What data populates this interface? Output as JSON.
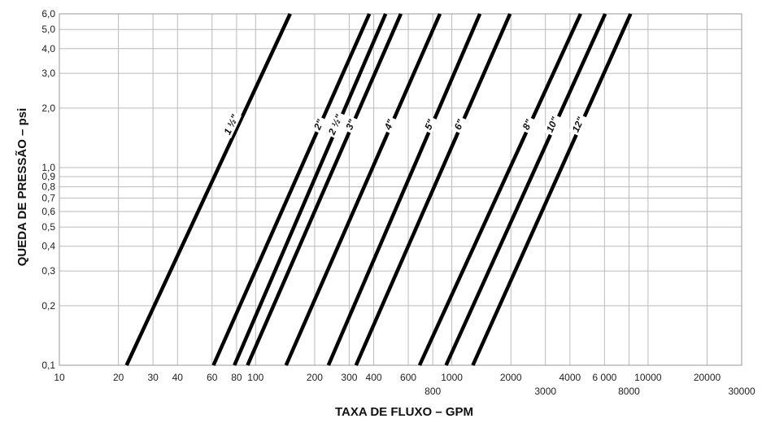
{
  "chart_data": {
    "type": "line",
    "xscale": "log",
    "yscale": "log",
    "xlabel": "TAXA DE FLUXO – GPM",
    "ylabel": "QUEDA DE PRESSÃO – psi",
    "xlim": [
      10,
      30000
    ],
    "ylim": [
      0.1,
      6.0
    ],
    "grid": true,
    "x_ticks": [
      {
        "value": 10,
        "label": "10",
        "row": 0
      },
      {
        "value": 20,
        "label": "20",
        "row": 0
      },
      {
        "value": 30,
        "label": "30",
        "row": 0
      },
      {
        "value": 40,
        "label": "40",
        "row": 0
      },
      {
        "value": 60,
        "label": "60",
        "row": 0
      },
      {
        "value": 80,
        "label": "80",
        "row": 0
      },
      {
        "value": 100,
        "label": "100",
        "row": 0
      },
      {
        "value": 200,
        "label": "200",
        "row": 0
      },
      {
        "value": 300,
        "label": "300",
        "row": 0
      },
      {
        "value": 400,
        "label": "400",
        "row": 0
      },
      {
        "value": 600,
        "label": "600",
        "row": 0
      },
      {
        "value": 800,
        "label": "800",
        "row": 1
      },
      {
        "value": 1000,
        "label": "1000",
        "row": 0
      },
      {
        "value": 2000,
        "label": "2000",
        "row": 0
      },
      {
        "value": 3000,
        "label": "3000",
        "row": 1
      },
      {
        "value": 4000,
        "label": "4000",
        "row": 0
      },
      {
        "value": 6000,
        "label": "6 000",
        "row": 0
      },
      {
        "value": 8000,
        "label": "8000",
        "row": 1
      },
      {
        "value": 10000,
        "label": "10000",
        "row": 0
      },
      {
        "value": 20000,
        "label": "20000",
        "row": 0
      },
      {
        "value": 30000,
        "label": "30000",
        "row": 1
      }
    ],
    "y_ticks": [
      {
        "value": 0.1,
        "label": "0,1"
      },
      {
        "value": 0.2,
        "label": "0,2"
      },
      {
        "value": 0.3,
        "label": "0,3"
      },
      {
        "value": 0.4,
        "label": "0,4"
      },
      {
        "value": 0.5,
        "label": "0,5"
      },
      {
        "value": 0.6,
        "label": "0,6"
      },
      {
        "value": 0.7,
        "label": "0,7"
      },
      {
        "value": 0.8,
        "label": "0,8"
      },
      {
        "value": 0.9,
        "label": "0,9"
      },
      {
        "value": 1.0,
        "label": "1,0"
      },
      {
        "value": 2.0,
        "label": "2,0"
      },
      {
        "value": 3.0,
        "label": "3,0"
      },
      {
        "value": 4.0,
        "label": "4,0"
      },
      {
        "value": 5.0,
        "label": "5,0"
      },
      {
        "value": 6.0,
        "label": "6,0"
      }
    ],
    "series": [
      {
        "name": "1 ½\"",
        "points": [
          [
            22,
            0.1
          ],
          [
            150,
            6.0
          ]
        ],
        "label_at": [
          75,
          1.65
        ]
      },
      {
        "name": "2\"",
        "points": [
          [
            61,
            0.1
          ],
          [
            380,
            6.0
          ]
        ],
        "label_at": [
          210,
          1.65
        ]
      },
      {
        "name": "2 ½\"",
        "points": [
          [
            78,
            0.1
          ],
          [
            460,
            6.0
          ]
        ],
        "label_at": [
          255,
          1.65
        ]
      },
      {
        "name": "3\"",
        "points": [
          [
            91,
            0.1
          ],
          [
            550,
            6.0
          ]
        ],
        "label_at": [
          305,
          1.65
        ]
      },
      {
        "name": "4\"",
        "points": [
          [
            143,
            0.1
          ],
          [
            870,
            6.0
          ]
        ],
        "label_at": [
          480,
          1.65
        ]
      },
      {
        "name": "5\"",
        "points": [
          [
            235,
            0.1
          ],
          [
            1390,
            6.0
          ]
        ],
        "label_at": [
          770,
          1.65
        ]
      },
      {
        "name": "6\"",
        "points": [
          [
            325,
            0.1
          ],
          [
            1980,
            6.0
          ]
        ],
        "label_at": [
          1090,
          1.65
        ]
      },
      {
        "name": "8\"",
        "points": [
          [
            685,
            0.1
          ],
          [
            4530,
            6.0
          ]
        ],
        "label_at": [
          2430,
          1.65
        ]
      },
      {
        "name": "10\"",
        "points": [
          [
            935,
            0.1
          ],
          [
            6050,
            6.0
          ]
        ],
        "label_at": [
          3250,
          1.65
        ]
      },
      {
        "name": "12\"",
        "points": [
          [
            1280,
            0.1
          ],
          [
            8150,
            6.0
          ]
        ],
        "label_at": [
          4400,
          1.65
        ]
      }
    ]
  }
}
